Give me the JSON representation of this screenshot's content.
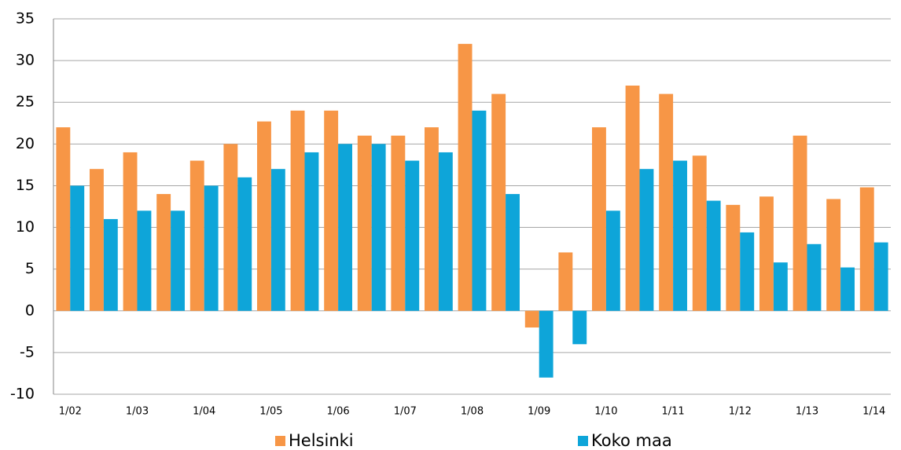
{
  "chart_data": {
    "type": "bar",
    "categories": [
      "1/02",
      null,
      "1/03",
      null,
      "1/04",
      null,
      "1/05",
      null,
      "1/06",
      null,
      "1/07",
      null,
      "1/08",
      null,
      "1/09",
      null,
      "1/10",
      null,
      "1/11",
      null,
      "1/12",
      null,
      "1/13",
      null,
      "1/14"
    ],
    "series": [
      {
        "name": "Helsinki",
        "color": "#f79646",
        "values": [
          22,
          17,
          19,
          14,
          18,
          20,
          22.7,
          24,
          24,
          21,
          21,
          22,
          32,
          26,
          -2,
          7,
          22,
          27,
          26,
          18.6,
          12.7,
          13.7,
          21,
          13.4,
          14.8
        ]
      },
      {
        "name": "Koko maa",
        "color": "#0ea5d9",
        "values": [
          15,
          11,
          12,
          12,
          15,
          16,
          17,
          19,
          20,
          20,
          18,
          19,
          24,
          14,
          -8,
          -4,
          12,
          17,
          18,
          13.2,
          9.4,
          5.8,
          8,
          5.2,
          8.2
        ]
      }
    ],
    "ylim": [
      -10,
      35
    ],
    "yticks": [
      -10,
      -5,
      0,
      5,
      10,
      15,
      20,
      25,
      30,
      35
    ],
    "grid": true,
    "legend": "bottom"
  }
}
